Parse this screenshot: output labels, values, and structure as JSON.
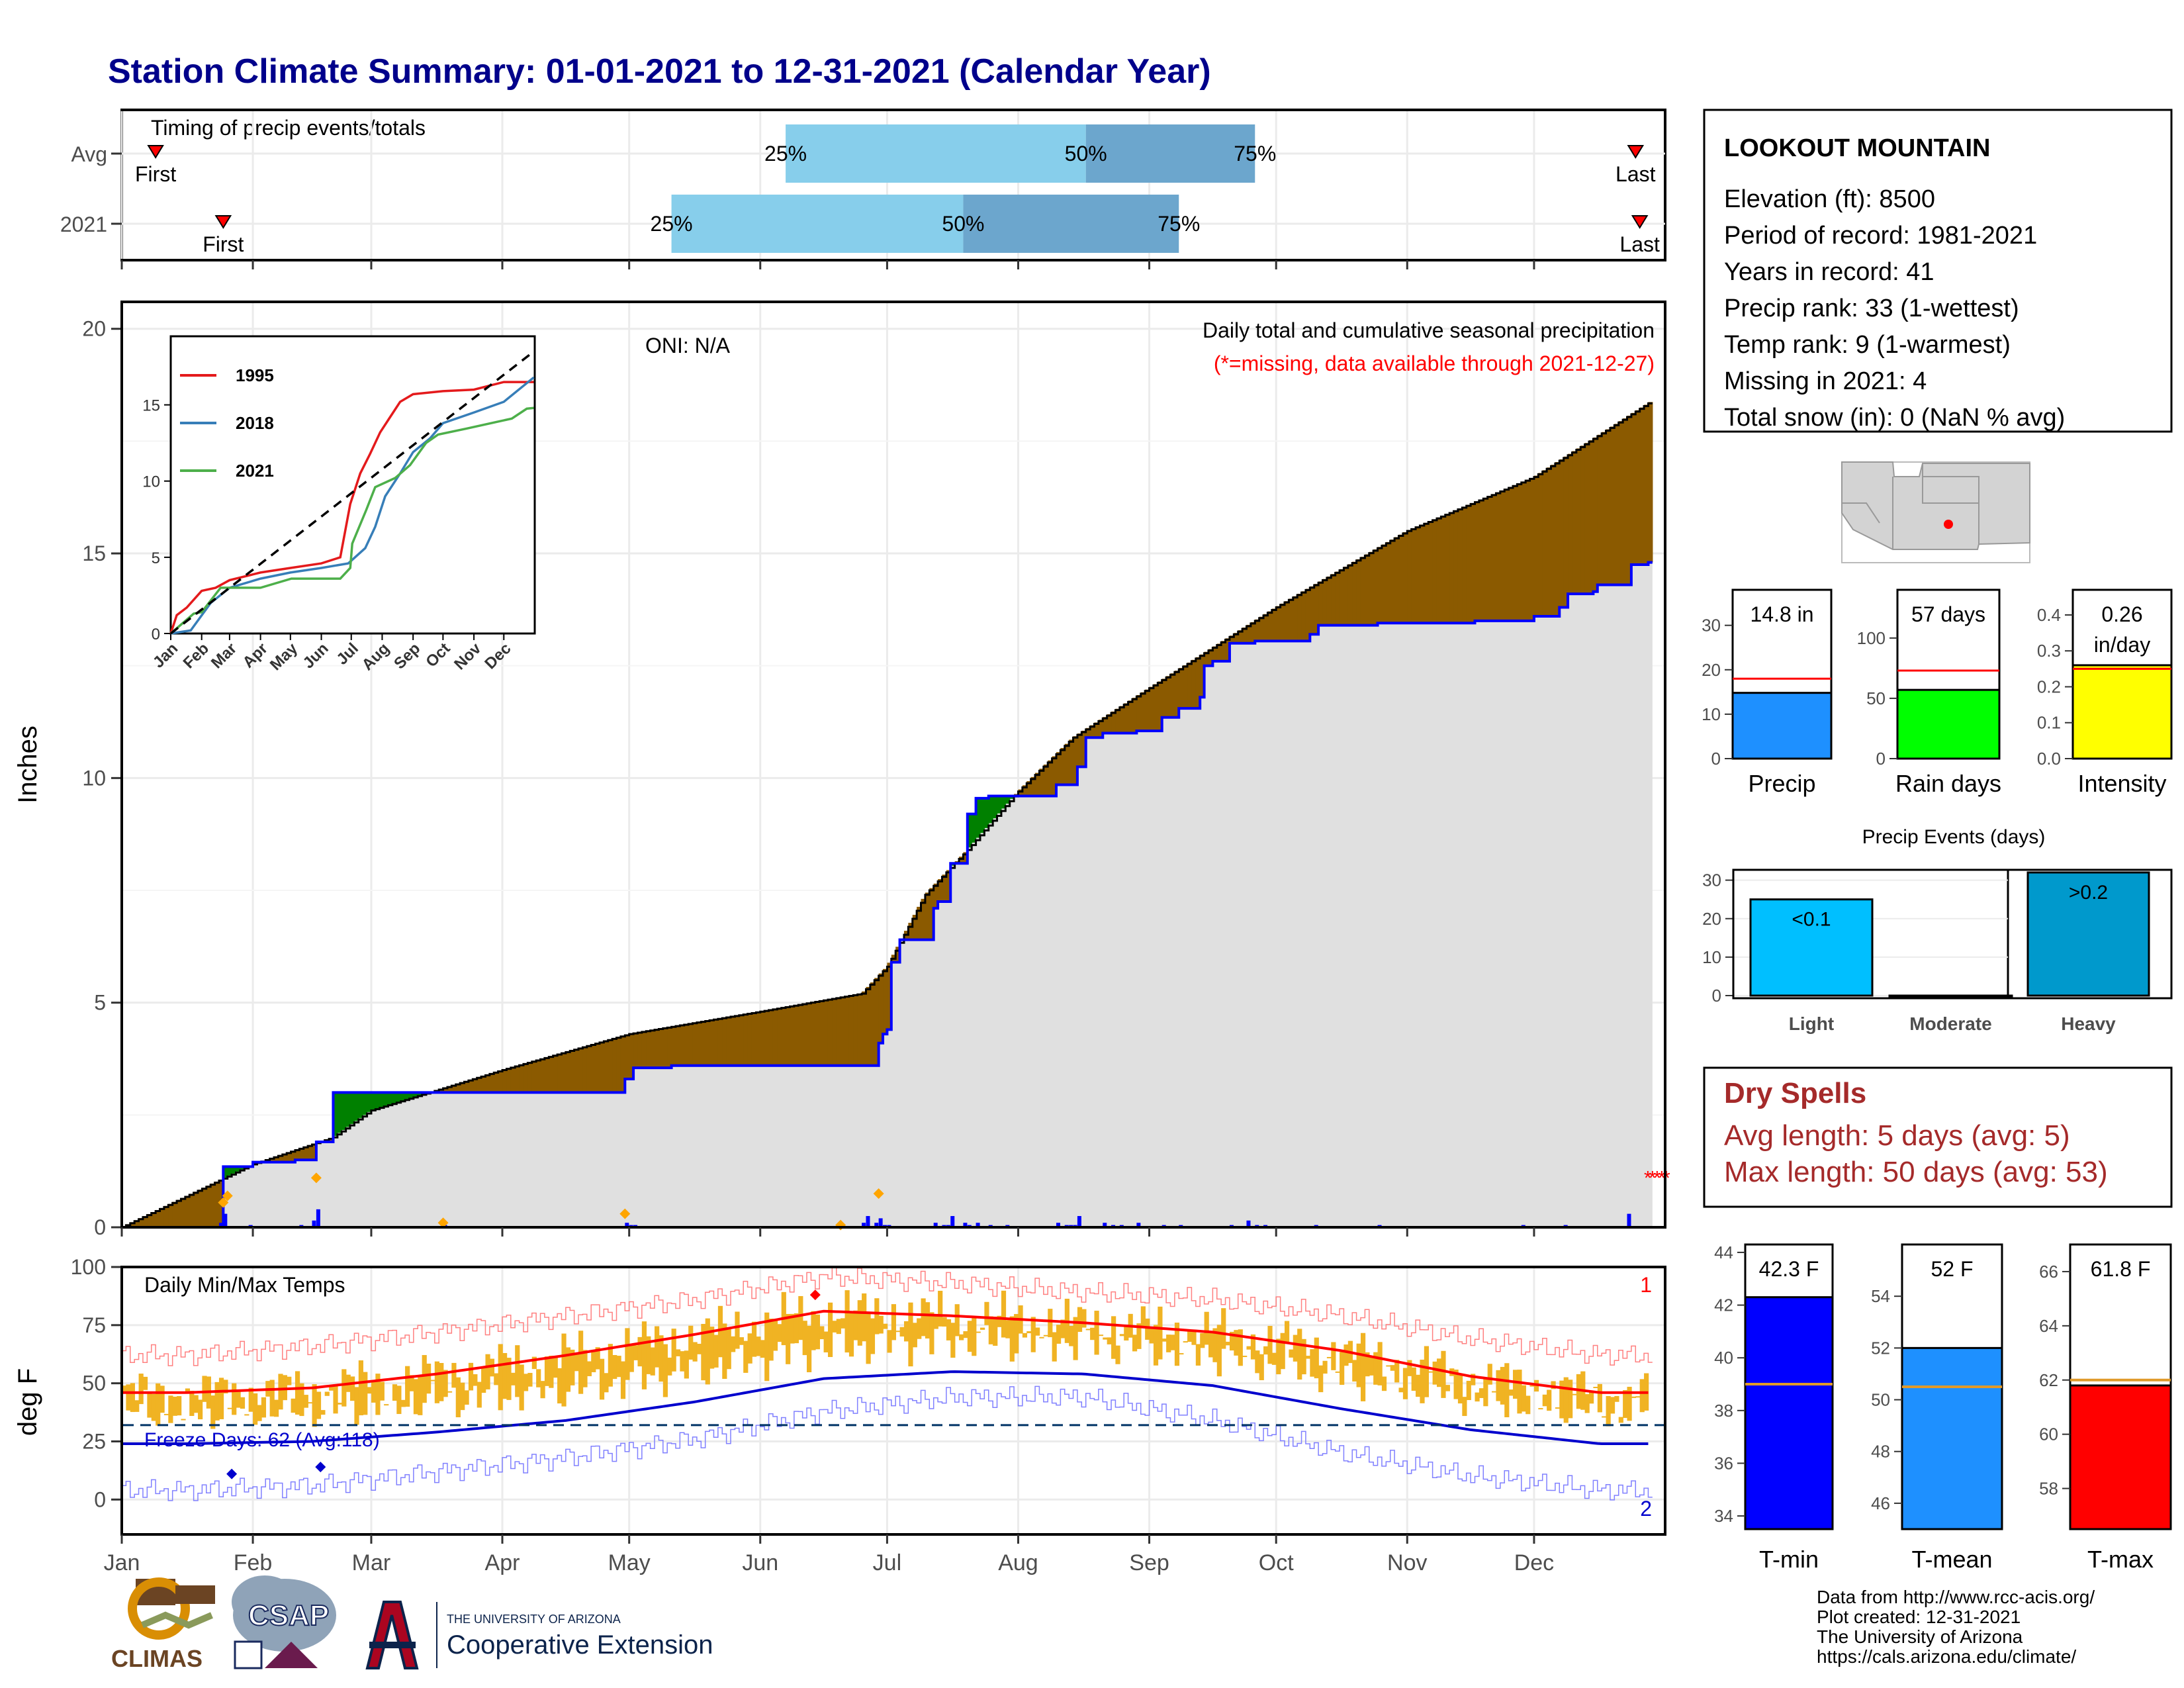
{
  "title": "Station Climate Summary: 01-01-2021 to 12-31-2021 (Calendar Year)",
  "colors": {
    "brown": "#8b5a00",
    "green": "#008000",
    "blue_line": "#0000ff",
    "gray_fill": "#e0e0e0",
    "light_blue": "#87ceeb",
    "steel_blue": "#6ca6cd",
    "temp_bar": "#f0b323",
    "avg_max": "#ff0000",
    "avg_min": "#0000cd",
    "dry_red": "#a52a2a"
  },
  "timing": {
    "title": "Timing of precip events/totals",
    "rows": [
      {
        "label": "Avg",
        "first_label": "First",
        "last_label": "Last",
        "first_doy": 8,
        "last_doy": 358,
        "p25_doy": 157,
        "p50_doy": 228,
        "p75_doy": 268
      },
      {
        "label": "2021",
        "first_label": "First",
        "last_label": "Last",
        "first_doy": 24,
        "last_doy": 359,
        "p25_doy": 130,
        "p50_doy": 199,
        "p75_doy": 250
      }
    ],
    "pct_labels": [
      "25%",
      "50%",
      "75%"
    ]
  },
  "months": [
    "Jan",
    "Feb",
    "Mar",
    "Apr",
    "May",
    "Jun",
    "Jul",
    "Aug",
    "Sep",
    "Oct",
    "Nov",
    "Dec"
  ],
  "month_start_doy": [
    0,
    31,
    59,
    90,
    120,
    151,
    181,
    212,
    243,
    273,
    304,
    334
  ],
  "main": {
    "ylabel": "Inches",
    "yticks": [
      "0",
      "5",
      "10",
      "15",
      "20"
    ],
    "ylim": [
      0,
      20
    ],
    "oni": "ONI: N/A",
    "subtitle": "Daily total and cumulative seasonal precipitation",
    "missing_note": "(*=missing, data available through 2021-12-27)",
    "days_shown": 361
  },
  "chart_data": [
    {
      "type": "area",
      "title": "Daily total and cumulative seasonal precipitation",
      "ylabel": "Inches",
      "ylim": [
        0,
        20
      ],
      "avg_cumulative": {
        "doy": [
          0,
          31,
          50,
          59,
          90,
          120,
          151,
          175,
          181,
          190,
          200,
          212,
          225,
          243,
          273,
          304,
          334,
          362
        ],
        "inches": [
          0,
          1.4,
          2.0,
          2.6,
          3.5,
          4.3,
          4.8,
          5.2,
          5.8,
          7.4,
          8.4,
          9.7,
          10.9,
          12.0,
          13.8,
          15.5,
          16.7,
          18.4
        ]
      },
      "obs_2021_cumulative": {
        "doy": [
          0,
          23,
          24,
          31,
          41,
          46,
          50,
          67,
          76,
          85,
          88,
          90,
          110,
          119,
          121,
          130,
          170,
          174,
          179,
          180,
          181,
          182,
          184,
          192,
          193,
          196,
          200,
          202,
          205,
          213,
          221,
          226,
          228,
          232,
          236,
          240,
          246,
          250,
          255,
          256,
          258,
          262,
          268,
          281,
          283,
          297,
          307,
          315,
          320,
          334,
          340,
          342,
          348,
          349,
          357,
          361
        ],
        "inches": [
          0,
          0,
          1.35,
          1.45,
          1.5,
          1.9,
          3.0,
          3.0,
          3.0,
          3.0,
          3.0,
          3.0,
          3.0,
          3.3,
          3.55,
          3.6,
          3.6,
          3.6,
          4.1,
          4.3,
          4.4,
          5.9,
          6.4,
          7.1,
          7.25,
          8.1,
          9.2,
          9.55,
          9.6,
          9.6,
          9.85,
          10.25,
          10.9,
          11.0,
          11.0,
          11.05,
          11.35,
          11.55,
          11.8,
          12.5,
          12.6,
          13.0,
          13.05,
          13.2,
          13.4,
          13.45,
          13.45,
          13.45,
          13.5,
          13.6,
          13.8,
          14.1,
          14.15,
          14.3,
          14.75,
          14.8
        ]
      },
      "daily_precip": {
        "doy": [
          23,
          24,
          30,
          42,
          45,
          46,
          76,
          119,
          120,
          121,
          170,
          175,
          176,
          178,
          179,
          180,
          181,
          192,
          194,
          195,
          196,
          199,
          200,
          202,
          205,
          209,
          221,
          223,
          224,
          225,
          226,
          232,
          234,
          236,
          240,
          246,
          250,
          262,
          266,
          268,
          270,
          282,
          297,
          331,
          341,
          356
        ],
        "inches": [
          0.1,
          0.3,
          0.05,
          0.05,
          0.15,
          0.4,
          0.05,
          0.1,
          0.05,
          0.05,
          0.05,
          0.1,
          0.25,
          0.1,
          0.2,
          0.05,
          0.05,
          0.1,
          0.05,
          0.05,
          0.25,
          0.1,
          0.05,
          0.1,
          0.05,
          0.05,
          0.1,
          0.05,
          0.05,
          0.05,
          0.25,
          0.1,
          0.05,
          0.05,
          0.1,
          0.05,
          0.05,
          0.05,
          0.15,
          0.05,
          0.05,
          0.05,
          0.05,
          0.05,
          0.05,
          0.3
        ]
      }
    },
    {
      "type": "line",
      "title": "",
      "x": [
        "Jan",
        "Feb",
        "Mar",
        "Apr",
        "May",
        "Jun",
        "Jul",
        "Aug",
        "Sep",
        "Oct",
        "Nov",
        "Dec"
      ],
      "xlabels": [
        "Jan",
        "Feb",
        "Mar",
        "Apr",
        "May",
        "Jun",
        "Jul",
        "Aug",
        "Sep",
        "Oct",
        "Nov",
        "Dec"
      ],
      "yticks": [
        "0",
        "5",
        "10",
        "15"
      ],
      "ylim": [
        0,
        19.5
      ],
      "series": [
        {
          "name": "1995",
          "color": "#e41a1c",
          "doy": [
            0,
            6,
            16,
            31,
            45,
            59,
            90,
            120,
            151,
            170,
            180,
            190,
            200,
            210,
            218,
            230,
            243,
            273,
            304,
            334,
            364
          ],
          "inches": [
            0,
            1.2,
            1.7,
            2.8,
            3.0,
            3.5,
            4.0,
            4.3,
            4.6,
            5.0,
            8.5,
            10.5,
            11.8,
            13.2,
            14.0,
            15.2,
            15.7,
            15.9,
            16.0,
            16.5,
            16.5
          ]
        },
        {
          "name": "2018",
          "color": "#377eb8",
          "doy": [
            0,
            20,
            40,
            59,
            90,
            120,
            151,
            178,
            195,
            205,
            215,
            230,
            243,
            260,
            273,
            304,
            334,
            364
          ],
          "inches": [
            0,
            0.2,
            2.0,
            3.0,
            3.6,
            4.0,
            4.3,
            4.6,
            5.6,
            7.0,
            9.0,
            10.5,
            11.9,
            12.8,
            13.8,
            14.5,
            15.2,
            16.8
          ]
        },
        {
          "name": "2021",
          "color": "#4daf4a",
          "doy": [
            0,
            23,
            31,
            50,
            90,
            121,
            170,
            180,
            182,
            196,
            205,
            225,
            240,
            256,
            268,
            297,
            342,
            357,
            364
          ],
          "inches": [
            0,
            1.3,
            1.4,
            3.0,
            3.0,
            3.6,
            3.6,
            4.3,
            5.9,
            8.1,
            9.6,
            10.2,
            11.05,
            12.5,
            13.05,
            13.45,
            14.1,
            14.75,
            14.8
          ]
        }
      ],
      "avg_line": {
        "doy": [
          0,
          364
        ],
        "inches": [
          0,
          18.5
        ]
      }
    },
    {
      "type": "bar",
      "title": "Daily Min/Max Temps",
      "ylabel": "deg F",
      "ylim": [
        -15,
        100
      ],
      "yticks": [
        "0",
        "25",
        "50",
        "75",
        "100"
      ],
      "freeze_days_label": "Freeze Days: 62 (Avg:118)",
      "freeze_line_f": 32,
      "record_high_count": "1",
      "record_low_count": "2",
      "normal_max_monthly_f": [
        46,
        48,
        54,
        62,
        71,
        81,
        79,
        76,
        72,
        64,
        53,
        46
      ],
      "normal_min_monthly_f": [
        24,
        25,
        29,
        34,
        42,
        52,
        55,
        54,
        49,
        39,
        30,
        24
      ],
      "record_max_monthly_f": [
        62,
        66,
        72,
        79,
        86,
        96,
        93,
        89,
        86,
        79,
        69,
        62
      ],
      "record_min_monthly_f": [
        4,
        6,
        12,
        18,
        26,
        38,
        44,
        44,
        34,
        20,
        10,
        4
      ]
    },
    {
      "type": "bar",
      "title": "Precip",
      "categories": [
        "Precip"
      ],
      "values": [
        14.8
      ],
      "value_label": "14.8 in",
      "avg": 18,
      "ylim": [
        0,
        38
      ],
      "yticks": [
        "0",
        "10",
        "20",
        "30"
      ],
      "color": "#1e90ff"
    },
    {
      "type": "bar",
      "title": "Rain days",
      "categories": [
        "Rain days"
      ],
      "values": [
        57
      ],
      "value_label": "57 days",
      "avg": 73,
      "ylim": [
        0,
        140
      ],
      "yticks": [
        "0",
        "50",
        "100"
      ],
      "color": "#00ff00"
    },
    {
      "type": "bar",
      "title": "Intensity",
      "categories": [
        "Intensity"
      ],
      "values": [
        0.26
      ],
      "value_label": "0.26 in/day",
      "avg": 0.25,
      "ylim": [
        0,
        0.47
      ],
      "yticks": [
        "0.0",
        "0.1",
        "0.2",
        "0.3",
        "0.4"
      ],
      "color": "#ffff00"
    },
    {
      "type": "bar",
      "title": "Precip Events (days)",
      "categories": [
        "Light",
        "Moderate",
        "Heavy"
      ],
      "values": [
        25,
        0,
        32
      ],
      "bar_labels": [
        "<0.1",
        "",
        ">0.2"
      ],
      "ylim": [
        0,
        32
      ],
      "yticks": [
        "0",
        "10",
        "20",
        "30"
      ],
      "colors": [
        "#00bfff",
        "#00bfff",
        "#0099cc"
      ]
    },
    {
      "type": "bar",
      "title": "T-min",
      "categories": [
        "T-min"
      ],
      "values": [
        42.3
      ],
      "value_label": "42.3 F",
      "avg": 39,
      "ylim": [
        33.5,
        44.3
      ],
      "yticks": [
        "34",
        "36",
        "38",
        "40",
        "42",
        "44"
      ],
      "color": "#0000ff"
    },
    {
      "type": "bar",
      "title": "T-mean",
      "categories": [
        "T-mean"
      ],
      "values": [
        52
      ],
      "value_label": "52 F",
      "avg": 50.5,
      "ylim": [
        45,
        56
      ],
      "yticks": [
        "46",
        "48",
        "50",
        "52",
        "54"
      ],
      "color": "#1e90ff"
    },
    {
      "type": "bar",
      "title": "T-max",
      "categories": [
        "T-max"
      ],
      "values": [
        61.8
      ],
      "value_label": "61.8 F",
      "avg": 62,
      "ylim": [
        56.5,
        67
      ],
      "yticks": [
        "58",
        "60",
        "62",
        "64",
        "66"
      ],
      "color": "#ff0000"
    }
  ],
  "station": {
    "name": "LOOKOUT MOUNTAIN",
    "lines": [
      "Elevation (ft): 8500",
      "Period of record: 1981-2021",
      "Years in record: 41",
      "Precip rank: 33 (1-wettest)",
      "Temp rank: 9 (1-warmest)",
      "Missing in 2021: 4",
      "Total snow (in): 0 (NaN % avg)"
    ]
  },
  "dry_spells": {
    "title": "Dry Spells",
    "avg_length": "Avg length: 5 days (avg: 5)",
    "max_length": "Max length: 50 days (avg: 53)"
  },
  "credits": [
    "Data from http://www.rcc-acis.org/",
    "Plot created: 12-31-2021",
    "The University of Arizona",
    "https://cals.arizona.edu/climate/"
  ],
  "logos": {
    "climas": "CLIMAS",
    "csap": "CSAP",
    "ua_small": "THE UNIVERSITY OF ARIZONA",
    "ua_big": "Cooperative Extension"
  }
}
